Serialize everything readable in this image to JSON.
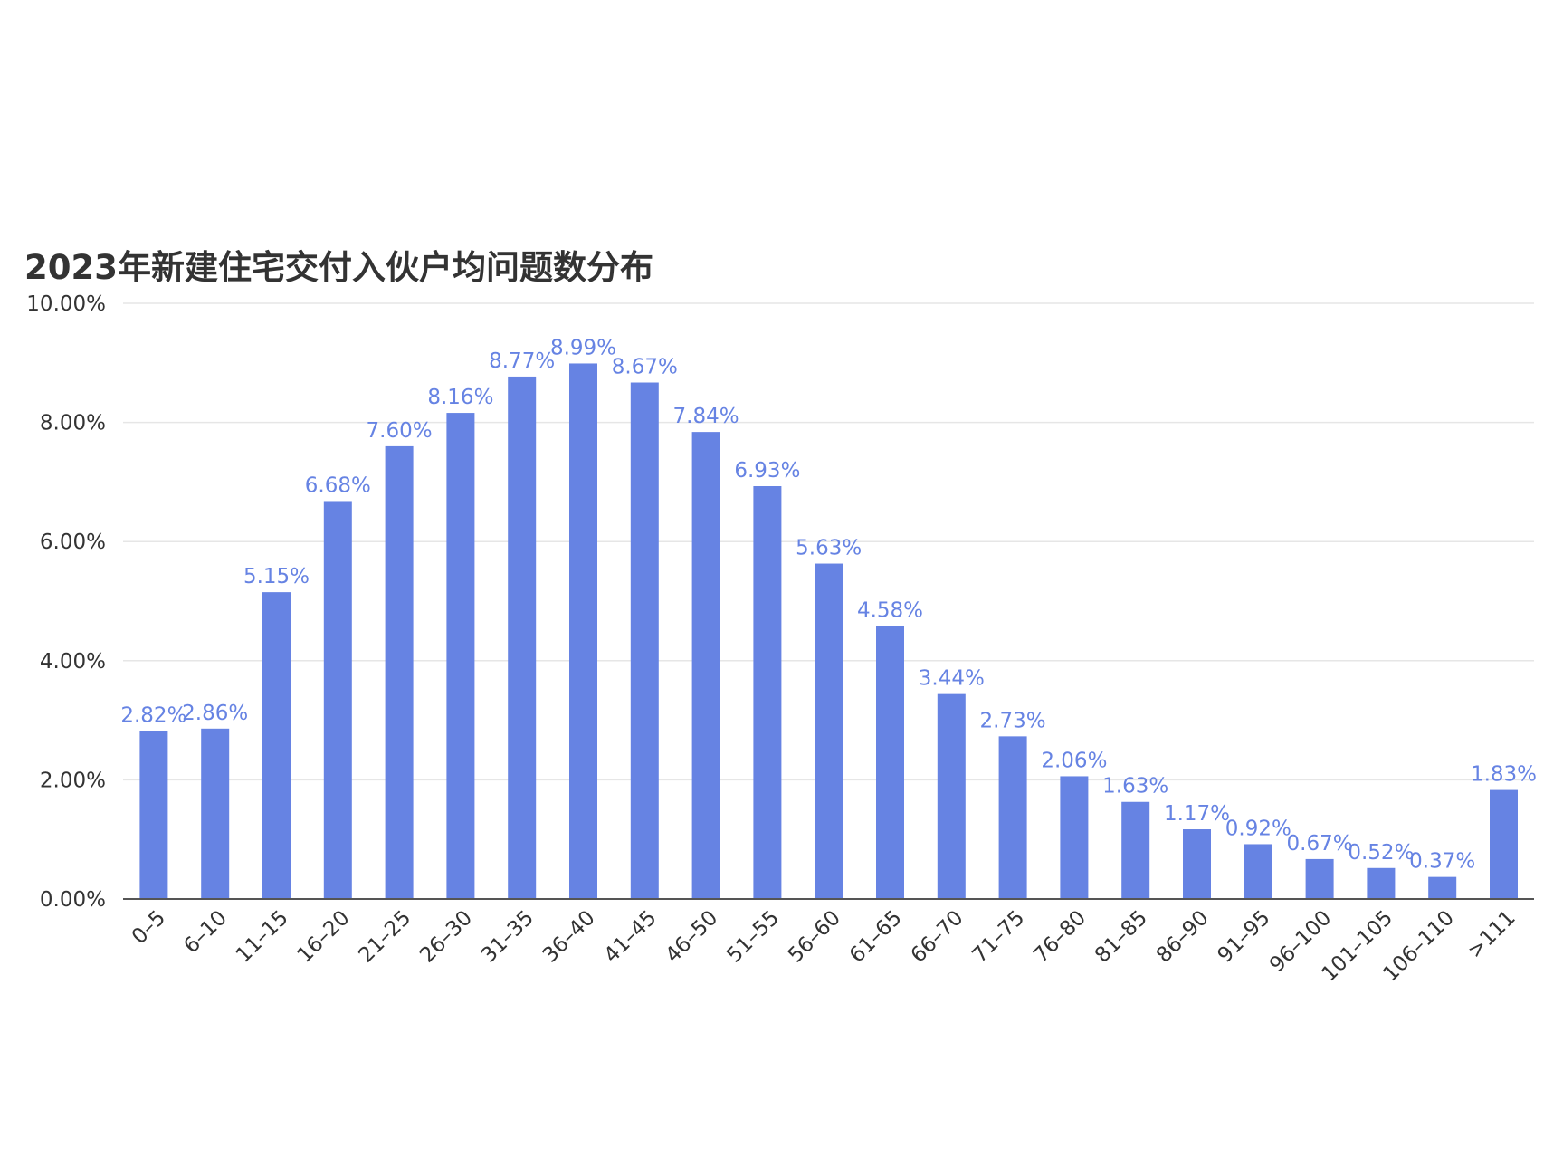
{
  "chart_data": {
    "type": "bar",
    "title": "2023年新建住宅交付入伙户均问题数分布",
    "xlabel": "",
    "ylabel": "",
    "ylim": [
      0,
      10
    ],
    "yticks": [
      "0.00%",
      "2.00%",
      "4.00%",
      "6.00%",
      "8.00%",
      "10.00%"
    ],
    "ytick_values": [
      0,
      2,
      4,
      6,
      8,
      10
    ],
    "grid": true,
    "legend": "none",
    "bar_color": "#6683e3",
    "label_color": "#6683e3",
    "categories": [
      "0–5",
      "6–10",
      "11–15",
      "16–20",
      "21–25",
      "26–30",
      "31–35",
      "36–40",
      "41–45",
      "46–50",
      "51–55",
      "56–60",
      "61–65",
      "66–70",
      "71–75",
      "76–80",
      "81–85",
      "86–90",
      "91–95",
      "96–100",
      "101–105",
      "106–110",
      ">111"
    ],
    "values": [
      2.82,
      2.86,
      5.15,
      6.68,
      7.6,
      8.16,
      8.77,
      8.99,
      8.67,
      7.84,
      6.93,
      5.63,
      4.58,
      3.44,
      2.73,
      2.06,
      1.63,
      1.17,
      0.92,
      0.67,
      0.52,
      0.37,
      1.83
    ],
    "data_labels": [
      "2.82%",
      "2.86%",
      "5.15%",
      "6.68%",
      "7.60%",
      "8.16%",
      "8.77%",
      "8.99%",
      "8.67%",
      "7.84%",
      "6.93%",
      "5.63%",
      "4.58%",
      "3.44%",
      "2.73%",
      "2.06%",
      "1.63%",
      "1.17%",
      "0.92%",
      "0.67%",
      "0.52%",
      "0.37%",
      "1.83%"
    ]
  }
}
